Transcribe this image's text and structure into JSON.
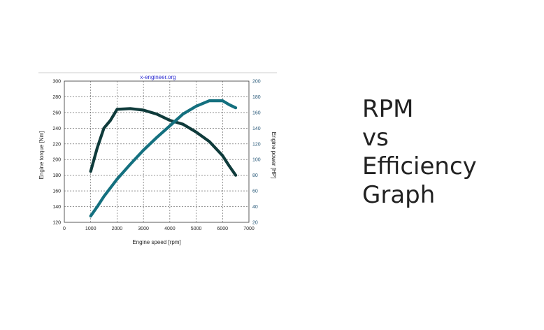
{
  "slide": {
    "title": "RPM\nvs\nEfficiency\nGraph"
  },
  "chart_data": {
    "type": "line",
    "title": "x-engineer.org",
    "xlabel": "Engine speed [rpm]",
    "ylabel": "Engine torque [Nm]",
    "y2label": "Engine power [HP]",
    "xlim": [
      0,
      7000
    ],
    "ylim": [
      120,
      300
    ],
    "y2lim": [
      20,
      200
    ],
    "x_ticks": [
      0,
      1000,
      2000,
      3000,
      4000,
      5000,
      6000,
      7000
    ],
    "y_ticks": [
      120,
      140,
      160,
      180,
      200,
      220,
      240,
      260,
      280,
      300
    ],
    "y2_ticks": [
      20,
      40,
      60,
      80,
      100,
      120,
      140,
      160,
      180,
      200
    ],
    "grid": true,
    "series": [
      {
        "axis": "left",
        "color": "#0f3b3b",
        "x": [
          1000,
          1250,
          1500,
          1750,
          2000,
          2500,
          3000,
          3500,
          4000,
          4500,
          5000,
          5500,
          6000,
          6250,
          6500
        ],
        "y": [
          185,
          215,
          240,
          250,
          264,
          265,
          263,
          258,
          250,
          245,
          235,
          223,
          205,
          192,
          180
        ]
      },
      {
        "axis": "right",
        "color": "#14707f",
        "x": [
          1000,
          1250,
          1500,
          1750,
          2000,
          2500,
          3000,
          3500,
          4000,
          4500,
          5000,
          5500,
          6000,
          6250,
          6500
        ],
        "y": [
          28,
          40,
          53,
          64,
          75,
          94,
          112,
          128,
          143,
          158,
          168,
          175,
          175,
          170,
          166
        ]
      }
    ]
  }
}
